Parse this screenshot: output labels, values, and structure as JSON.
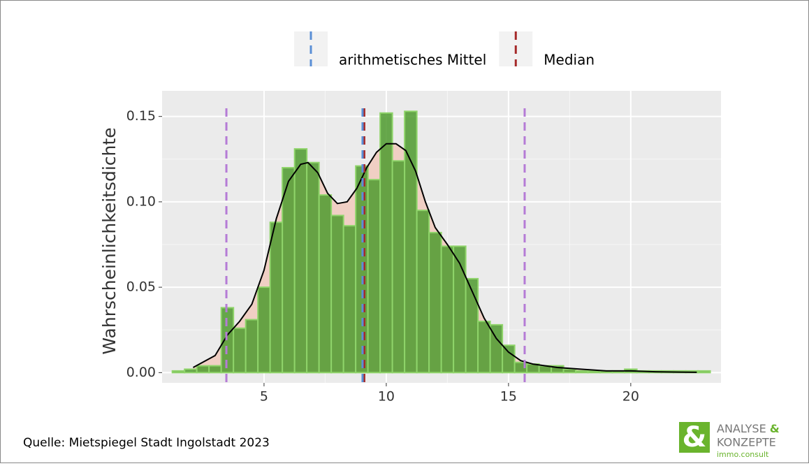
{
  "chart_data": {
    "type": "histogram",
    "ylabel": "Wahrscheinlichkeitsdichte",
    "source": "Quelle: Mietspiegel Stadt Ingolstadt 2023",
    "bins": [
      1.25,
      1.75,
      2.25,
      2.75,
      3.25,
      3.75,
      4.25,
      4.75,
      5.25,
      5.75,
      6.25,
      6.75,
      7.25,
      7.75,
      8.25,
      8.75,
      9.25,
      9.75,
      10.25,
      10.75,
      11.25,
      11.75,
      12.25,
      12.75,
      13.25,
      13.75,
      14.25,
      14.75,
      15.25,
      15.75,
      16.25,
      16.75,
      17.25,
      17.75,
      18.25,
      18.75,
      19.25,
      19.75,
      20.25,
      20.75,
      21.25,
      21.75,
      22.25,
      22.75,
      23.25
    ],
    "counts": [
      0.001,
      0.002,
      0.004,
      0.004,
      0.038,
      0.026,
      0.031,
      0.05,
      0.088,
      0.12,
      0.131,
      0.123,
      0.104,
      0.092,
      0.086,
      0.121,
      0.113,
      0.152,
      0.124,
      0.153,
      0.095,
      0.082,
      0.074,
      0.074,
      0.055,
      0.03,
      0.028,
      0.016,
      0.006,
      0.005,
      0.004,
      0.004,
      0.002,
      0.001,
      0.001,
      0.001,
      0.001,
      0.002,
      0.001,
      0.001,
      0.001,
      0.001,
      0.001,
      0.001
    ],
    "color": "#4e9a2e",
    "edge_color": "#8fd46a",
    "density": {
      "color": "#000000",
      "fill": "#f0cfc4",
      "x": [
        2.1,
        3,
        3.5,
        4,
        4.5,
        5,
        5.5,
        6,
        6.5,
        6.8,
        7.2,
        7.6,
        8,
        8.4,
        8.8,
        9.2,
        9.6,
        10,
        10.4,
        10.8,
        11.2,
        11.6,
        12,
        12.5,
        13,
        13.5,
        14,
        14.5,
        15,
        15.5,
        16,
        17,
        18,
        19,
        20,
        21,
        22,
        22.7
      ],
      "y": [
        0.003,
        0.01,
        0.022,
        0.03,
        0.04,
        0.06,
        0.09,
        0.112,
        0.122,
        0.123,
        0.117,
        0.105,
        0.099,
        0.1,
        0.108,
        0.12,
        0.129,
        0.134,
        0.134,
        0.13,
        0.118,
        0.1,
        0.085,
        0.075,
        0.064,
        0.048,
        0.032,
        0.02,
        0.012,
        0.007,
        0.005,
        0.003,
        0.002,
        0.001,
        0.001,
        0.0005,
        0.0003,
        0.0002
      ]
    },
    "vlines": [
      {
        "color": "#b57bd6",
        "x": 3.46
      },
      {
        "color": "#b57bd6",
        "x": 15.66
      },
      {
        "name": "Median",
        "color": "#a52a2a",
        "x": 9.1
      },
      {
        "name": "arithmetisches Mittel",
        "color": "#5a8fd6",
        "x": 9.03
      }
    ],
    "xlim": [
      0.83,
      23.69
    ],
    "ylim": [
      -0.006,
      0.165
    ],
    "xticks": [
      5,
      10,
      15,
      20
    ],
    "yticks": [
      {
        "value": 0,
        "label": "0.00"
      },
      0.05,
      {
        "value": 0.1,
        "label": "0.10"
      },
      0.15
    ],
    "grid": true,
    "logo": {
      "line1": "ANALYSE",
      "amp": "&",
      "line2": "KONZEPTE",
      "line3": "immo.consult"
    }
  }
}
